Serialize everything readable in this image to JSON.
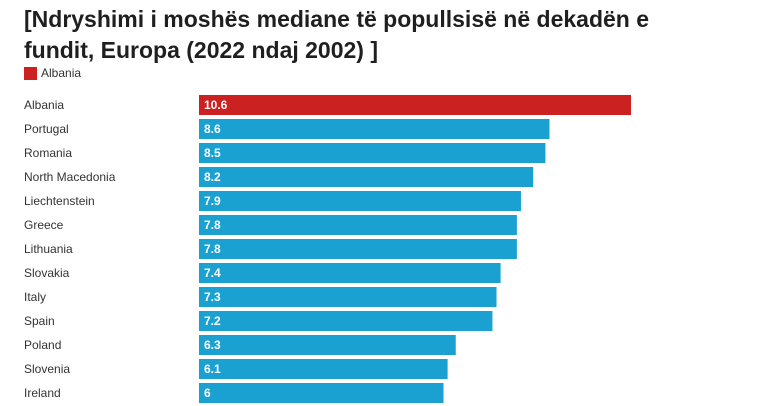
{
  "chart_data": {
    "type": "bar",
    "orientation": "horizontal",
    "title": "[Ndryshimi i moshës mediane të popullsisë në dekadën e fundit, Europa (2022 ndaj 2002) ]",
    "legend": [
      {
        "name": "Albania",
        "color": "#cc2121"
      }
    ],
    "categories": [
      "Albania",
      "Portugal",
      "Romania",
      "North Macedonia",
      "Liechtenstein",
      "Greece",
      "Lithuania",
      "Slovakia",
      "Italy",
      "Spain",
      "Poland",
      "Slovenia",
      "Ireland"
    ],
    "values": [
      10.6,
      8.6,
      8.5,
      8.2,
      7.9,
      7.8,
      7.8,
      7.4,
      7.3,
      7.2,
      6.3,
      6.1,
      6
    ],
    "value_labels": [
      "10.6",
      "8.6",
      "8.5",
      "8.2",
      "7.9",
      "7.8",
      "7.8",
      "7.4",
      "7.3",
      "7.2",
      "6.3",
      "6.1",
      "6"
    ],
    "highlight_index": 0,
    "colors": {
      "highlight": "#cc2121",
      "default": "#1aa1d1"
    },
    "xlim": [
      0,
      10.6
    ],
    "xlabel": "",
    "ylabel": ""
  }
}
